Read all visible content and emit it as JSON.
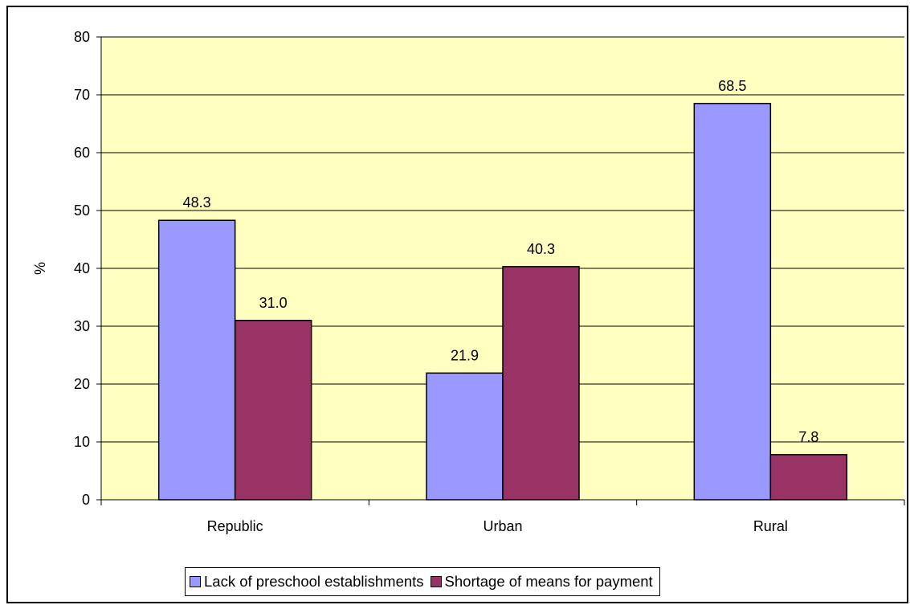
{
  "colors": {
    "plot_background": "#FFFFC0",
    "series_1": "#9999FF",
    "series_2": "#993366",
    "gridline": "#000000"
  },
  "chart_data": {
    "type": "bar",
    "categories": [
      "Republic",
      "Urban",
      "Rural"
    ],
    "series": [
      {
        "name": "Lack of preschool establishments",
        "values": [
          48.3,
          21.9,
          68.5
        ],
        "labels": [
          "48.3",
          "21.9",
          "68.5"
        ]
      },
      {
        "name": "Shortage of means for payment",
        "values": [
          31.0,
          40.3,
          7.8
        ],
        "labels": [
          "31.0",
          "40.3",
          "7.8"
        ]
      }
    ],
    "title": "",
    "xlabel": "",
    "ylabel": "%",
    "ylim": [
      0,
      80
    ],
    "yticks": [
      0,
      10,
      20,
      30,
      40,
      50,
      60,
      70,
      80
    ],
    "grid": true,
    "legend": "bottom"
  }
}
